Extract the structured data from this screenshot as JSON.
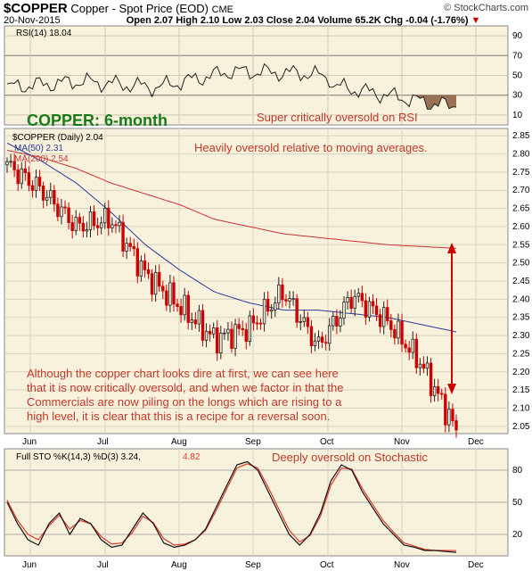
{
  "header": {
    "symbol": "$COPPER",
    "name": "Copper - Spot Price (EOD)",
    "exchange": "CME",
    "credit": "© StockCharts.com",
    "date": "20-Nov-2015",
    "open": "Open 2.07",
    "high": "High 2.10",
    "low": "Low 2.03",
    "close": "Close 2.04",
    "volume": "Volume 65.2K",
    "chg": "Chg -0.04 (-1.76%)",
    "chg_arrow": "▼"
  },
  "rsi_panel": {
    "label": "RSI(14) 18.04",
    "ticks": [
      "90",
      "70",
      "50",
      "30",
      "10"
    ],
    "annotation": "Super critically oversold on RSI"
  },
  "price_panel": {
    "title": "COPPER: 6-month",
    "legend_price": "$COPPER (Daily) 2.04",
    "legend_ma50": "MA(50) 2.31",
    "legend_ma200": "MA(200) 2.54",
    "annotation_top": "Heavily oversold relative to moving averages.",
    "annotation_body": [
      "Although the copper chart looks dire at first, we can see here",
      "that it is now critically oversold, and when we factor in that the",
      "Commercials are now piling on the longs which are rising to a",
      "high level, it is clear that this is a recipe for a reversal soon."
    ],
    "ticks": [
      "2.85",
      "2.80",
      "2.75",
      "2.70",
      "2.65",
      "2.60",
      "2.55",
      "2.50",
      "2.45",
      "2.40",
      "2.35",
      "2.30",
      "2.25",
      "2.20",
      "2.15",
      "2.10",
      "2.05"
    ],
    "months": [
      "Jun",
      "Jul",
      "Aug",
      "Sep",
      "Oct",
      "Nov",
      "Dec"
    ]
  },
  "sto_panel": {
    "label": "Full STO %K(14,3) %D(3) 3.24,",
    "label_d": "4.82",
    "annotation": "Deeply oversold on Stochastic",
    "ticks": [
      "80",
      "50",
      "20"
    ],
    "months": [
      "Jun",
      "Jul",
      "Aug",
      "Sep",
      "Oct",
      "Nov",
      "Dec"
    ]
  },
  "colors": {
    "panel_bg": "#f8f1dc",
    "grid": "#cfc8b3",
    "up_bar": "#222222",
    "down_bar": "#cc0000",
    "ma50": "#2a3b9a",
    "ma200": "#cc3333",
    "annotation": "#c0392b",
    "title_green": "#1a7a1a",
    "sto_d": "#e03a2a"
  },
  "chart_data": [
    {
      "type": "line",
      "name": "RSI(14)",
      "ylim": [
        0,
        100
      ],
      "reference_lines": [
        70,
        30
      ],
      "x": [
        "Jun",
        "Jul",
        "Aug",
        "Sep",
        "Oct",
        "Nov",
        "Dec"
      ],
      "values_approx_at_months": [
        38,
        44,
        38,
        54,
        52,
        40,
        null
      ],
      "last_value": 18.04
    },
    {
      "type": "line",
      "name": "$COPPER daily close",
      "ylim": [
        2.03,
        2.87
      ],
      "x": [
        "late-May",
        "Jun",
        "mid-Jun",
        "Jul",
        "mid-Jul",
        "Aug",
        "mid-Aug",
        "Sep",
        "mid-Sep",
        "Oct",
        "mid-Oct",
        "Nov",
        "mid-Nov",
        "20-Nov"
      ],
      "close": [
        2.77,
        2.7,
        2.6,
        2.62,
        2.47,
        2.38,
        2.29,
        2.32,
        2.42,
        2.27,
        2.41,
        2.34,
        2.22,
        2.04
      ],
      "ma50": [
        2.83,
        2.78,
        2.72,
        2.64,
        2.55,
        2.48,
        2.42,
        2.39,
        2.37,
        2.37,
        2.36,
        2.35,
        2.33,
        2.31
      ],
      "ma200": [
        2.81,
        2.79,
        2.76,
        2.72,
        2.69,
        2.66,
        2.62,
        2.6,
        2.58,
        2.57,
        2.56,
        2.55,
        2.545,
        2.54
      ]
    },
    {
      "type": "line",
      "name": "Full STO %K(14,3) %D(3)",
      "ylim": [
        0,
        100
      ],
      "reference_lines": [
        80,
        50,
        20
      ],
      "k_values": [
        50,
        30,
        15,
        10,
        30,
        40,
        20,
        35,
        30,
        15,
        8,
        10,
        25,
        40,
        30,
        12,
        8,
        10,
        15,
        25,
        45,
        65,
        85,
        88,
        80,
        60,
        40,
        20,
        10,
        20,
        40,
        70,
        85,
        80,
        60,
        45,
        30,
        20,
        10,
        8,
        5,
        5,
        4,
        3.24
      ],
      "d_values": [
        52,
        33,
        20,
        15,
        28,
        38,
        25,
        33,
        30,
        18,
        11,
        12,
        22,
        37,
        31,
        16,
        10,
        11,
        15,
        24,
        42,
        62,
        82,
        86,
        82,
        64,
        44,
        24,
        13,
        19,
        37,
        66,
        82,
        81,
        63,
        48,
        33,
        22,
        12,
        9,
        6,
        5,
        5,
        4.82
      ],
      "last_k": 3.24,
      "last_d": 4.82
    }
  ]
}
